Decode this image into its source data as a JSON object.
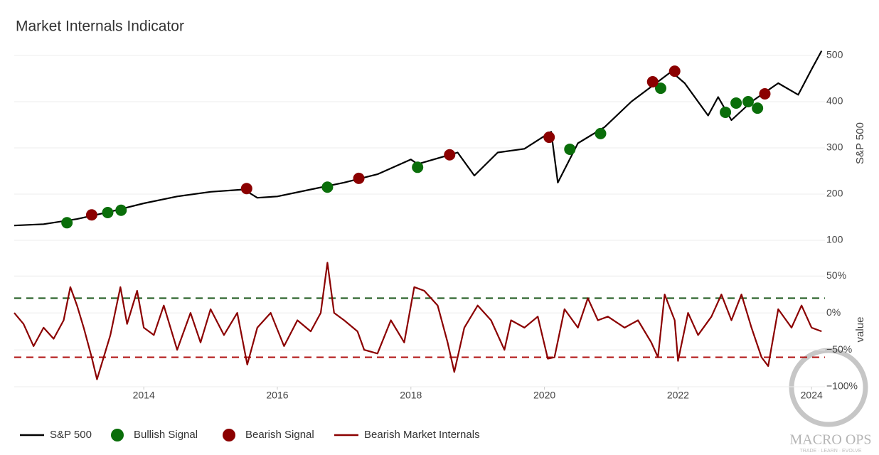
{
  "chart_data": [
    {
      "type": "line",
      "title": "Market Internals Indicator",
      "y_label": "S&P 500",
      "xlim": [
        2012.06,
        2024.2
      ],
      "ylim": [
        100,
        520
      ],
      "yticks": [
        100,
        200,
        300,
        400,
        500
      ],
      "grid": true,
      "series": [
        {
          "name": "S&P 500",
          "color": "#000000",
          "mode": "line",
          "x": [
            2012.06,
            2012.5,
            2013,
            2013.5,
            2014,
            2014.5,
            2015,
            2015.5,
            2015.7,
            2016,
            2016.5,
            2017,
            2017.5,
            2018,
            2018.1,
            2018.7,
            2018.95,
            2019.3,
            2019.7,
            2020.1,
            2020.2,
            2020.5,
            2020.9,
            2021.3,
            2021.9,
            2022.1,
            2022.45,
            2022.6,
            2022.8,
            2023.1,
            2023.5,
            2023.8,
            2024.0,
            2024.15
          ],
          "values": [
            132,
            135,
            146,
            162,
            180,
            195,
            205,
            210,
            192,
            195,
            210,
            225,
            243,
            275,
            265,
            290,
            240,
            290,
            298,
            335,
            225,
            310,
            345,
            400,
            465,
            440,
            370,
            410,
            360,
            400,
            440,
            415,
            470,
            510
          ]
        },
        {
          "name": "Bullish Signal",
          "color": "#0a6e0a",
          "mode": "markers",
          "x": [
            2012.85,
            2013.46,
            2013.66,
            2016.75,
            2018.1,
            2020.38,
            2020.84,
            2021.74,
            2022.71,
            2022.87,
            2023.05,
            2023.19
          ],
          "values": [
            138,
            160,
            165,
            215,
            258,
            297,
            331,
            429,
            377,
            397,
            400,
            386
          ]
        },
        {
          "name": "Bearish Signal",
          "color": "#8b0000",
          "mode": "markers",
          "x": [
            2013.22,
            2015.54,
            2017.22,
            2018.58,
            2020.07,
            2021.62,
            2021.95,
            2023.3
          ],
          "values": [
            155,
            212,
            234,
            285,
            323,
            443,
            466,
            417
          ]
        }
      ]
    },
    {
      "type": "line",
      "y_label": "value",
      "xlim": [
        2012.06,
        2024.2
      ],
      "xticks": [
        2014,
        2016,
        2018,
        2020,
        2022,
        2024
      ],
      "ylim": [
        -100,
        55
      ],
      "yticks": [
        {
          "value": -100,
          "label": "−100%"
        },
        {
          "value": -50,
          "label": "−50%"
        },
        {
          "value": 0,
          "label": "0%"
        },
        {
          "value": 50,
          "label": "50%"
        }
      ],
      "grid": true,
      "reference_lines": [
        {
          "value": 20,
          "color": "#1e5a1e"
        },
        {
          "value": -60,
          "color": "#b01010"
        }
      ],
      "series": [
        {
          "name": "Bearish Market Internals",
          "color": "#8b0000",
          "mode": "line",
          "x": [
            2012.06,
            2012.2,
            2012.35,
            2012.5,
            2012.65,
            2012.8,
            2012.9,
            2013.0,
            2013.1,
            2013.22,
            2013.3,
            2013.5,
            2013.65,
            2013.75,
            2013.9,
            2014.0,
            2014.15,
            2014.3,
            2014.5,
            2014.7,
            2014.85,
            2015.0,
            2015.2,
            2015.4,
            2015.55,
            2015.7,
            2015.9,
            2016.1,
            2016.3,
            2016.5,
            2016.65,
            2016.75,
            2016.85,
            2017.0,
            2017.2,
            2017.3,
            2017.5,
            2017.7,
            2017.9,
            2018.05,
            2018.2,
            2018.4,
            2018.55,
            2018.65,
            2018.8,
            2019.0,
            2019.2,
            2019.4,
            2019.5,
            2019.7,
            2019.9,
            2020.05,
            2020.15,
            2020.3,
            2020.5,
            2020.65,
            2020.8,
            2020.95,
            2021.2,
            2021.4,
            2021.6,
            2021.7,
            2021.8,
            2021.95,
            2022.0,
            2022.15,
            2022.3,
            2022.5,
            2022.65,
            2022.8,
            2022.95,
            2023.1,
            2023.25,
            2023.35,
            2023.5,
            2023.7,
            2023.85,
            2024.0,
            2024.15
          ],
          "values": [
            0,
            -15,
            -45,
            -20,
            -35,
            -10,
            35,
            10,
            -20,
            -60,
            -90,
            -30,
            35,
            -15,
            30,
            -20,
            -30,
            10,
            -50,
            0,
            -40,
            5,
            -30,
            0,
            -70,
            -20,
            0,
            -45,
            -10,
            -25,
            0,
            68,
            0,
            -10,
            -25,
            -50,
            -55,
            -10,
            -40,
            35,
            30,
            10,
            -40,
            -80,
            -20,
            10,
            -10,
            -50,
            -10,
            -20,
            -5,
            -62,
            -60,
            5,
            -20,
            20,
            -10,
            -5,
            -20,
            -10,
            -40,
            -60,
            25,
            -10,
            -65,
            0,
            -30,
            -5,
            25,
            -10,
            25,
            -20,
            -60,
            -72,
            5,
            -20,
            10,
            -20,
            -25
          ]
        }
      ]
    }
  ],
  "watermark": {
    "brand": "MACRO OPS",
    "tagline": "TRADE · LEARN · EVOLVE"
  }
}
